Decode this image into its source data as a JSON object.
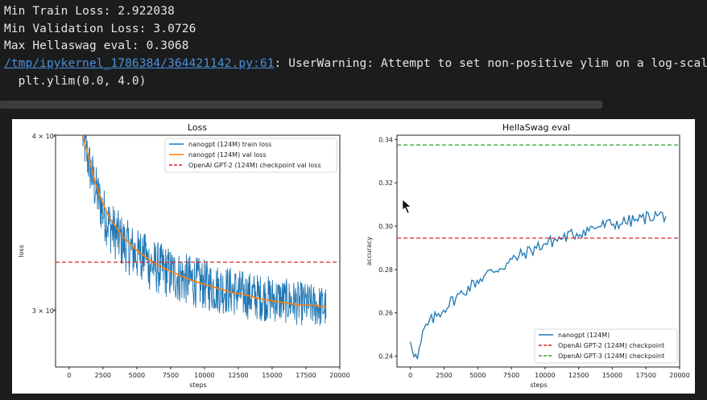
{
  "console": {
    "line1": "Min Train Loss: 2.922038",
    "line2": "Min Validation Loss: 3.0726",
    "line3": "Max Hellaswag eval: 0.3068",
    "warning_path": "/tmp/ipykernel_1786384/364421142.py:61",
    "warning_text": ": UserWarning: Attempt to set non-positive ylim on a log-scaled",
    "line5": "  plt.ylim(0.0, 4.0)"
  },
  "colors": {
    "train": "#1f77b4",
    "val": "#ff7f0e",
    "gpt2": "#d62728",
    "gpt3": "#2ca02c"
  },
  "chart_data": [
    {
      "type": "line",
      "title": "Loss",
      "xlabel": "steps",
      "ylabel": "loss",
      "yscale": "log",
      "xlim": [
        -1000,
        20000
      ],
      "ylim": [
        2.8,
        4.0
      ],
      "xticks": [
        "0",
        "2500",
        "5000",
        "7500",
        "10000",
        "12500",
        "15000",
        "17500",
        "20000"
      ],
      "yticks": [
        "4 × 10⁰",
        "3 × 10⁰"
      ],
      "legend_position": "top-right",
      "series": [
        {
          "name": "nanogpt (124M) train loss",
          "x": [
            1000,
            1500,
            2000,
            2500,
            3000,
            4000,
            5000,
            6000,
            7000,
            8000,
            9000,
            10000,
            11000,
            12000,
            13000,
            14000,
            15000,
            16000,
            17000,
            18000,
            19000
          ],
          "y": [
            4.0,
            3.82,
            3.67,
            3.56,
            3.48,
            3.39,
            3.33,
            3.28,
            3.25,
            3.22,
            3.2,
            3.18,
            3.16,
            3.15,
            3.13,
            3.12,
            3.11,
            3.1,
            3.09,
            3.08,
            3.07
          ]
        },
        {
          "name": "nanogpt (124M) val loss",
          "x": [
            1000,
            1500,
            2000,
            2500,
            3000,
            4000,
            5000,
            6000,
            7000,
            8000,
            9000,
            10000,
            11000,
            12000,
            13000,
            14000,
            15000,
            16000,
            17000,
            18000,
            19000
          ],
          "y": [
            4.0,
            3.85,
            3.7,
            3.6,
            3.52,
            3.42,
            3.35,
            3.3,
            3.26,
            3.23,
            3.2,
            3.18,
            3.16,
            3.14,
            3.13,
            3.11,
            3.1,
            3.09,
            3.08,
            3.08,
            3.07
          ]
        },
        {
          "name": "OpenAI GPT-2 (124M) checkpoint val loss",
          "x": [
            -1000,
            20000
          ],
          "y": [
            3.29,
            3.29
          ]
        }
      ]
    },
    {
      "type": "line",
      "title": "HellaSwag eval",
      "xlabel": "steps",
      "ylabel": "accuracy",
      "xlim": [
        -1000,
        20000
      ],
      "ylim": [
        0.235,
        0.342
      ],
      "xticks": [
        "0",
        "2500",
        "5000",
        "7500",
        "10000",
        "12500",
        "15000",
        "17500",
        "20000"
      ],
      "yticks": [
        "0.34",
        "0.32",
        "0.30",
        "0.28",
        "0.26",
        "0.24"
      ],
      "legend_position": "bottom-right",
      "series": [
        {
          "name": "nanogpt (124M)",
          "x": [
            0,
            250,
            500,
            750,
            1000,
            1500,
            2000,
            2500,
            3000,
            4000,
            5000,
            6000,
            7000,
            8000,
            9000,
            10000,
            11000,
            12000,
            13000,
            14000,
            15000,
            16000,
            17000,
            18000,
            19000
          ],
          "y": [
            0.248,
            0.242,
            0.238,
            0.245,
            0.252,
            0.256,
            0.259,
            0.262,
            0.265,
            0.27,
            0.275,
            0.279,
            0.282,
            0.286,
            0.289,
            0.292,
            0.294,
            0.296,
            0.298,
            0.3,
            0.301,
            0.302,
            0.303,
            0.305,
            0.305
          ]
        },
        {
          "name": "OpenAI GPT-2 (124M) checkpoint",
          "x": [
            -1000,
            20000
          ],
          "y": [
            0.2945,
            0.2945
          ]
        },
        {
          "name": "OpenAI GPT-3 (124M) checkpoint",
          "x": [
            -1000,
            20000
          ],
          "y": [
            0.3375,
            0.3375
          ]
        }
      ]
    }
  ]
}
